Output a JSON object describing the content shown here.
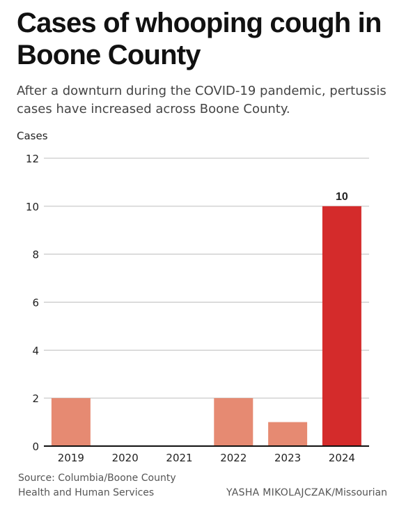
{
  "header": {
    "title": "Cases of whooping cough in Boone County",
    "subtitle": "After a downturn during the COVID-19 pandemic, pertussis cases have increased across Boone County."
  },
  "chart_data": {
    "type": "bar",
    "categories": [
      "2019",
      "2020",
      "2021",
      "2022",
      "2023",
      "2024"
    ],
    "values": [
      2,
      0,
      0,
      2,
      1,
      10
    ],
    "ylabel": "Cases",
    "ylim": [
      0,
      12
    ],
    "yticks": [
      0,
      2,
      4,
      6,
      8,
      10,
      12
    ],
    "data_labels": [
      {
        "category": "2024",
        "text": "10"
      }
    ],
    "grid": true,
    "colors": {
      "default_bar": "#E68A72",
      "highlight_bar": "#D42B2B",
      "gridline": "#BDBDBD",
      "baseline": "#111111"
    },
    "highlight_category": "2024"
  },
  "footer": {
    "source": "Source: Columbia/Boone County Health and Human Services",
    "credit_name": "YASHA MIKOLAJCZAK",
    "credit_org": "/Missourian"
  }
}
